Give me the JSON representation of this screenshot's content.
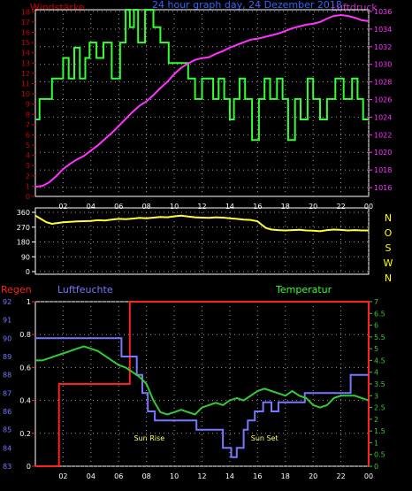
{
  "colors": {
    "background": "#000000",
    "grid": "#9a9a9a",
    "frame": "#ffffff",
    "wind": "#33ff33",
    "pressure": "#ff33ff",
    "pressure_label": "#cc33cc",
    "title": "#3366ff",
    "wind_label_left": "#cc0000",
    "direction": "#ffff33",
    "compass": "#ffff00",
    "rain": "#ff2020",
    "humidity": "#7777ff",
    "humidity_label": "#7777ff",
    "temperature": "#33cc33",
    "temperature_label": "#33ff33",
    "annotation": "#ffff66"
  },
  "chart_data": [
    {
      "type": "line",
      "title": "24 hour graph day, 24 Dezember 2018",
      "left_label": "Windstärke",
      "right_label": "Luftdruck",
      "x_ticks": [
        "02",
        "04",
        "06",
        "08",
        "10",
        "12",
        "14",
        "16",
        "18",
        "20",
        "22",
        "00"
      ],
      "left_ticks": [
        "0",
        "1",
        "2",
        "3",
        "4",
        "5",
        "6",
        "7",
        "8",
        "9",
        "10",
        "11",
        "12",
        "13",
        "14",
        "15",
        "16",
        "17",
        "18"
      ],
      "right_ticks": [
        "1016",
        "1018",
        "1020",
        "1022",
        "1024",
        "1026",
        "1028",
        "1030",
        "1032",
        "1034",
        "1036"
      ],
      "ylim_left": [
        0,
        18.2
      ],
      "ylim_right": [
        1015,
        1036.2
      ],
      "grid": true,
      "series": [
        {
          "name": "Windstärke",
          "axis": "left",
          "step": true,
          "x": [
            0.05,
            0.3,
            1.2,
            2.0,
            2.4,
            2.8,
            3.2,
            3.6,
            3.9,
            4.4,
            4.9,
            5.5,
            6.1,
            6.5,
            6.8,
            7.1,
            7.4,
            7.9,
            8.5,
            9.0,
            9.6,
            10.1,
            11.0,
            11.5,
            12.0,
            12.8,
            13.2,
            13.6,
            14.0,
            14.3,
            14.7,
            15.1,
            15.6,
            16.1,
            16.5,
            16.9,
            17.4,
            17.8,
            18.2,
            18.7,
            19.1,
            19.6,
            20.0,
            20.5,
            21.0,
            21.6,
            22.2,
            22.8,
            23.2,
            23.6,
            24.0
          ],
          "values": [
            7.5,
            9.5,
            11.5,
            13.5,
            11.5,
            14.5,
            11.5,
            13.5,
            15,
            13.5,
            15,
            11.5,
            15,
            18.3,
            16.5,
            18.3,
            15,
            18.3,
            16.5,
            15,
            13,
            13,
            11.5,
            9.5,
            11.5,
            9.5,
            11.5,
            9.5,
            7.5,
            9.5,
            11.5,
            9.5,
            5.5,
            9.5,
            11.5,
            9.5,
            11.5,
            9.5,
            5.5,
            9.5,
            7.5,
            11.5,
            9.5,
            7.5,
            9.5,
            11.5,
            9.5,
            11.5,
            9.5,
            7.5,
            7.5
          ]
        },
        {
          "name": "Luftdruck",
          "axis": "right",
          "step": false,
          "x": [
            0,
            0.5,
            1,
            1.5,
            2,
            2.5,
            3,
            3.5,
            4,
            4.5,
            5,
            5.5,
            6,
            6.5,
            7,
            7.5,
            8,
            8.5,
            9,
            9.5,
            10,
            10.5,
            11,
            11.5,
            12,
            12.5,
            13,
            13.5,
            14,
            14.5,
            15,
            15.5,
            16,
            16.5,
            17,
            17.5,
            18,
            18.5,
            19,
            19.5,
            20,
            20.5,
            21,
            21.5,
            22,
            22.5,
            23,
            23.5,
            24
          ],
          "values": [
            1016.1,
            1016.2,
            1016.6,
            1017.3,
            1018.1,
            1018.7,
            1019.2,
            1019.6,
            1020.2,
            1020.8,
            1021.5,
            1022.2,
            1023.0,
            1023.8,
            1024.6,
            1025.3,
            1025.8,
            1026.5,
            1027.3,
            1028.0,
            1028.9,
            1029.6,
            1030.1,
            1030.5,
            1030.7,
            1030.8,
            1031.2,
            1031.5,
            1031.9,
            1032.2,
            1032.5,
            1032.8,
            1032.9,
            1033.1,
            1033.3,
            1033.5,
            1033.8,
            1034.1,
            1034.3,
            1034.5,
            1034.6,
            1034.8,
            1035.2,
            1035.5,
            1035.6,
            1035.5,
            1035.3,
            1035.0,
            1034.9
          ]
        }
      ]
    },
    {
      "type": "line",
      "y_ticks": [
        "0",
        "90",
        "180",
        "270",
        "360"
      ],
      "compass": [
        "N",
        "W",
        "S",
        "O",
        "N"
      ],
      "ylim": [
        0,
        360
      ],
      "grid": true,
      "series": [
        {
          "name": "Windrichtung",
          "x": [
            0,
            0.3,
            0.8,
            1.2,
            2,
            3,
            4,
            4.5,
            5,
            5.5,
            6,
            6.5,
            7,
            7.5,
            8,
            8.5,
            9,
            9.5,
            10,
            10.5,
            11,
            11.5,
            12,
            12.5,
            13,
            13.5,
            14,
            14.5,
            15,
            15.5,
            16,
            16.3,
            16.6,
            17,
            17.5,
            18,
            18.5,
            19,
            19.5,
            20,
            20.5,
            21,
            21.5,
            22,
            22.5,
            23,
            23.5,
            24
          ],
          "values": [
            340,
            325,
            300,
            290,
            300,
            305,
            308,
            312,
            310,
            316,
            320,
            318,
            322,
            326,
            324,
            328,
            332,
            330,
            336,
            340,
            334,
            330,
            328,
            326,
            330,
            328,
            324,
            320,
            316,
            314,
            305,
            285,
            265,
            255,
            252,
            250,
            252,
            254,
            250,
            248,
            245,
            252,
            255,
            253,
            250,
            252,
            250,
            250
          ]
        }
      ]
    },
    {
      "type": "line",
      "left_label_1": "Regen",
      "left_label_2": "Luftfeuchte",
      "right_label": "Temperatur",
      "x_ticks": [
        "02",
        "04",
        "06",
        "08",
        "10",
        "12",
        "14",
        "16",
        "18",
        "20",
        "22",
        "00"
      ],
      "humidity_ticks": [
        "83",
        "84",
        "85",
        "86",
        "87",
        "88",
        "89",
        "90",
        "91",
        "92"
      ],
      "rain_ticks": [
        "0",
        "0.2",
        "0.4",
        "0.6",
        "0.8",
        "1"
      ],
      "temperature_ticks": [
        "0",
        "0.5",
        "1",
        "1.5",
        "2",
        "2.5",
        "3",
        "3.5",
        "4",
        "4.5",
        "5",
        "5.5",
        "6",
        "6.5",
        "7"
      ],
      "ylim_humidity": [
        83,
        92
      ],
      "ylim_rain": [
        0,
        1
      ],
      "ylim_temperature": [
        0,
        7
      ],
      "annotations": [
        {
          "label": "Sun Rise",
          "x": 8.2
        },
        {
          "label": "Sun Set",
          "x": 16.5
        }
      ],
      "grid": true,
      "series": [
        {
          "name": "Regen",
          "axis": "rain",
          "step": true,
          "x": [
            0,
            1.7,
            6.8,
            23.9,
            24
          ],
          "values": [
            0,
            0.5,
            1,
            1,
            0
          ]
        },
        {
          "name": "Luftfeuchte",
          "axis": "humidity",
          "step": true,
          "x": [
            0,
            6.2,
            7.3,
            7.7,
            8.1,
            8.6,
            11.0,
            11.6,
            13.5,
            14.1,
            14.5,
            15.0,
            15.3,
            15.8,
            16.4,
            17.0,
            17.5,
            18.3,
            18.8,
            19.4,
            20.0,
            21.0,
            22.0,
            22.7,
            23.5,
            24
          ],
          "values": [
            90,
            89,
            88,
            87,
            86,
            85.5,
            85.5,
            85,
            84,
            83.5,
            84,
            85,
            85.5,
            86,
            86.5,
            86,
            86.5,
            86.5,
            86.5,
            87,
            87,
            87,
            87,
            88,
            88,
            88
          ]
        },
        {
          "name": "Temperatur",
          "axis": "temperature",
          "step": false,
          "x": [
            0,
            0.5,
            1,
            1.5,
            2,
            2.5,
            3,
            3.5,
            4,
            4.5,
            5,
            5.5,
            6,
            6.5,
            7,
            7.5,
            8,
            8.5,
            9,
            9.5,
            10,
            10.5,
            11,
            11.5,
            12,
            12.5,
            13,
            13.5,
            14,
            14.5,
            15,
            15.5,
            16,
            16.5,
            17,
            17.5,
            18,
            18.5,
            19,
            19.5,
            20,
            20.5,
            21,
            21.5,
            22,
            22.5,
            23,
            23.5,
            24
          ],
          "values": [
            4.5,
            4.5,
            4.6,
            4.7,
            4.8,
            4.9,
            5.0,
            5.1,
            5.0,
            4.9,
            4.7,
            4.5,
            4.3,
            4.2,
            4.0,
            3.8,
            3.5,
            2.8,
            2.3,
            2.2,
            2.3,
            2.4,
            2.3,
            2.2,
            2.5,
            2.6,
            2.7,
            2.6,
            2.8,
            2.9,
            2.8,
            3.0,
            3.2,
            3.3,
            3.2,
            3.1,
            3.0,
            3.2,
            3.0,
            2.9,
            2.6,
            2.5,
            2.6,
            2.9,
            3.0,
            3.0,
            3.0,
            2.9,
            2.8
          ]
        }
      ]
    }
  ]
}
